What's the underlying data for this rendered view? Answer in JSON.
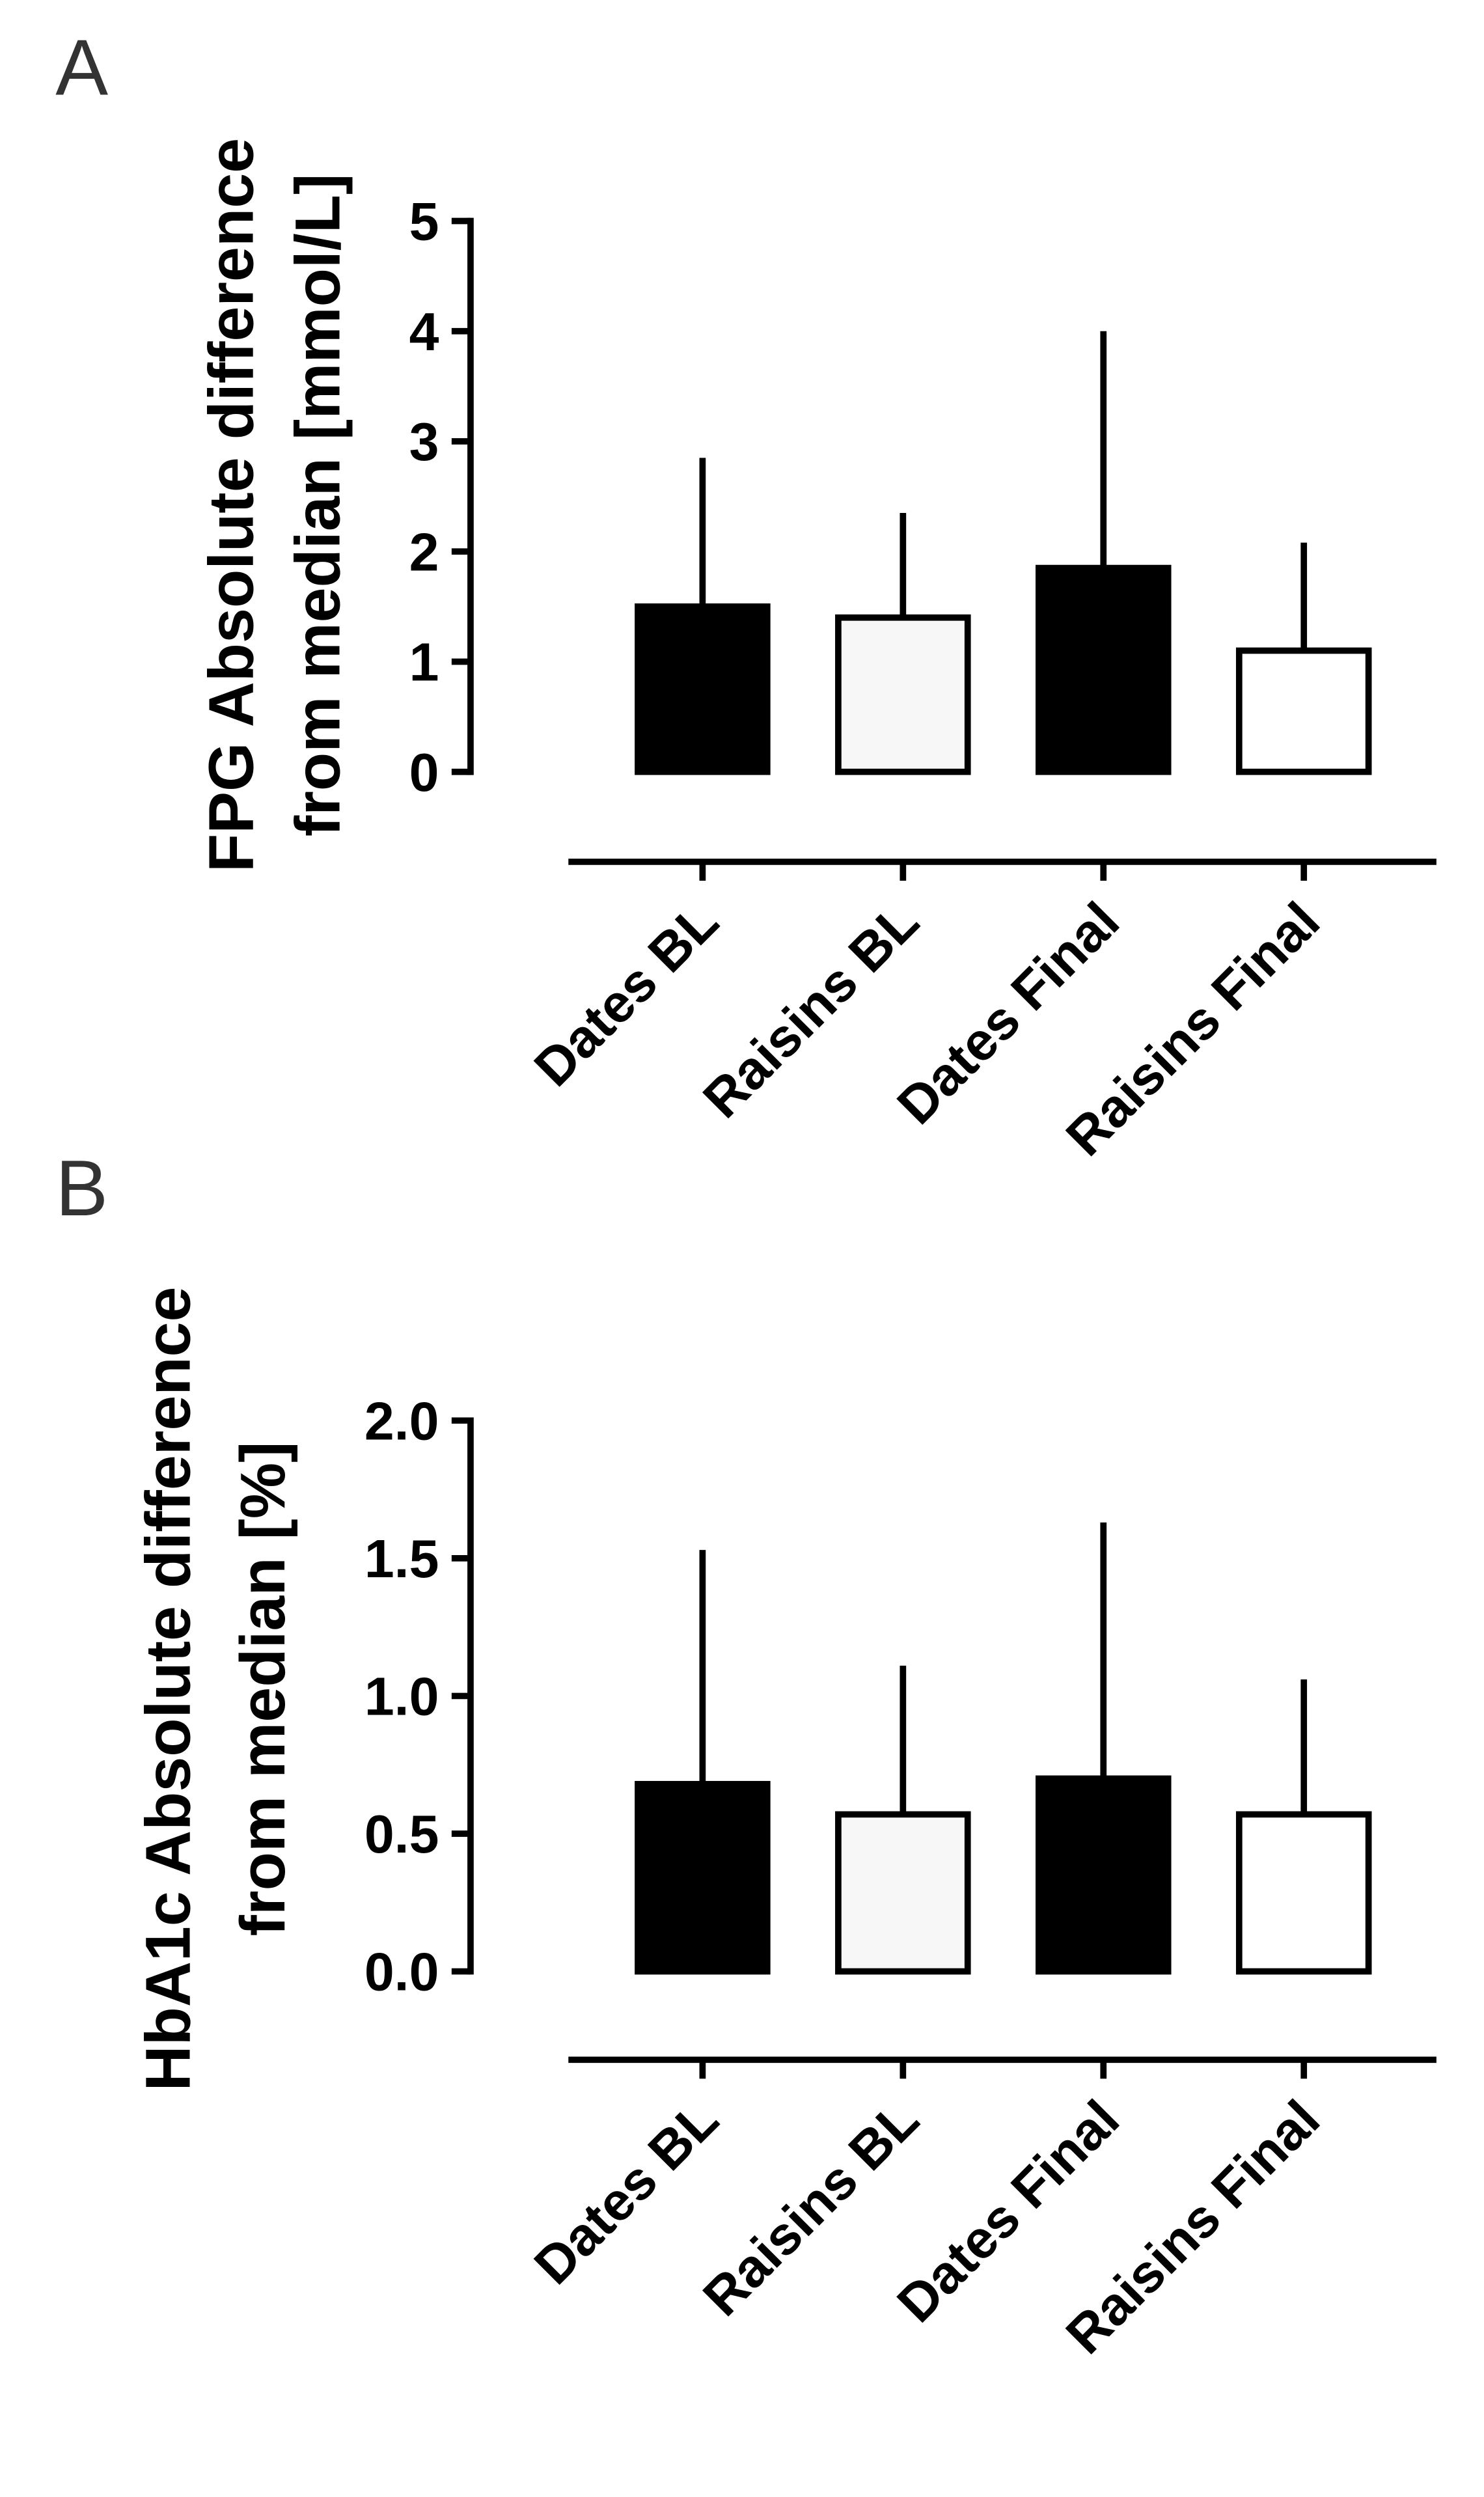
{
  "chart_data": [
    {
      "type": "bar",
      "panel_label": "A",
      "ylabel": [
        "FPG Absolute difference",
        "from median [mmol/L]"
      ],
      "categories": [
        "Dates BL",
        "Raisins BL",
        "Dates Final",
        "Raisins Final"
      ],
      "values": [
        1.5,
        1.4,
        1.85,
        1.1
      ],
      "errors": [
        1.35,
        0.95,
        2.15,
        0.98
      ],
      "colors": [
        "#000000",
        "#f7f7f7",
        "#000000",
        "#ffffff"
      ],
      "ylim": [
        0,
        5
      ],
      "yticks": [
        0,
        1,
        2,
        3,
        4,
        5
      ]
    },
    {
      "type": "bar",
      "panel_label": "B",
      "ylabel": [
        "HbA1c Absolute difference",
        "from median [%]"
      ],
      "categories": [
        "Dates BL",
        "Raisins BL",
        "Dates Final",
        "Raisins Final"
      ],
      "values": [
        0.68,
        0.57,
        0.7,
        0.57
      ],
      "errors": [
        0.85,
        0.54,
        0.93,
        0.49
      ],
      "colors": [
        "#000000",
        "#f7f7f7",
        "#000000",
        "#ffffff"
      ],
      "ylim": [
        0,
        2
      ],
      "yticks": [
        {
          "value": 0,
          "label": "0.0"
        },
        {
          "value": 0.5,
          "label": "0.5"
        },
        {
          "value": 1,
          "label": "1.0"
        },
        {
          "value": 1.5,
          "label": "1.5"
        },
        {
          "value": 2,
          "label": "2.0"
        }
      ]
    }
  ]
}
